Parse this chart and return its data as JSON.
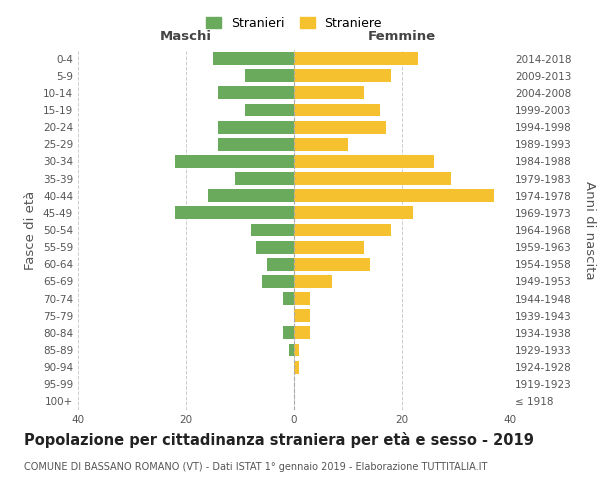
{
  "age_groups": [
    "100+",
    "95-99",
    "90-94",
    "85-89",
    "80-84",
    "75-79",
    "70-74",
    "65-69",
    "60-64",
    "55-59",
    "50-54",
    "45-49",
    "40-44",
    "35-39",
    "30-34",
    "25-29",
    "20-24",
    "15-19",
    "10-14",
    "5-9",
    "0-4"
  ],
  "birth_years": [
    "≤ 1918",
    "1919-1923",
    "1924-1928",
    "1929-1933",
    "1934-1938",
    "1939-1943",
    "1944-1948",
    "1949-1953",
    "1954-1958",
    "1959-1963",
    "1964-1968",
    "1969-1973",
    "1974-1978",
    "1979-1983",
    "1984-1988",
    "1989-1993",
    "1994-1998",
    "1999-2003",
    "2004-2008",
    "2009-2013",
    "2014-2018"
  ],
  "maschi": [
    0,
    0,
    0,
    1,
    2,
    0,
    2,
    6,
    5,
    7,
    8,
    22,
    16,
    11,
    22,
    14,
    14,
    9,
    14,
    9,
    15
  ],
  "femmine": [
    0,
    0,
    1,
    1,
    3,
    3,
    3,
    7,
    14,
    13,
    18,
    22,
    37,
    29,
    26,
    10,
    17,
    16,
    13,
    18,
    23
  ],
  "maschi_color": "#6aaa5c",
  "femmine_color": "#f5c12e",
  "background_color": "#ffffff",
  "grid_color": "#cccccc",
  "title": "Popolazione per cittadinanza straniera per età e sesso - 2019",
  "subtitle": "COMUNE DI BASSANO ROMANO (VT) - Dati ISTAT 1° gennaio 2019 - Elaborazione TUTTITALIA.IT",
  "xlabel_left": "Maschi",
  "xlabel_right": "Femmine",
  "ylabel_left": "Fasce di età",
  "ylabel_right": "Anni di nascita",
  "xlim": 40,
  "legend_maschi": "Stranieri",
  "legend_femmine": "Straniere",
  "title_fontsize": 10.5,
  "subtitle_fontsize": 7.0,
  "tick_fontsize": 7.5,
  "label_fontsize": 9.5
}
